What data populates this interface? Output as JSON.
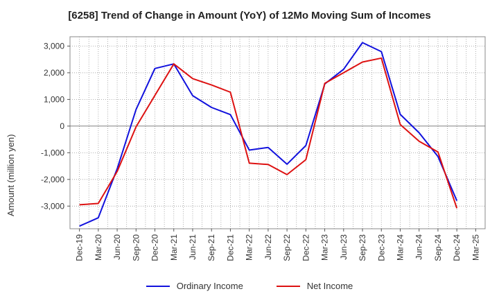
{
  "chart_data": {
    "type": "line",
    "title": "[6258]  Trend of Change in Amount (YoY) of 12Mo Moving Sum of Incomes",
    "ylabel": "Amount (million yen)",
    "xlabel": "",
    "ylim": [
      -3850,
      3350
    ],
    "yticks": [
      3000,
      2000,
      1000,
      0,
      -1000,
      -2000,
      -3000
    ],
    "ytick_labels": [
      "3,000",
      "2,000",
      "1,000",
      "0",
      "-1,000",
      "-2,000",
      "-3,000"
    ],
    "x": [
      "Dec-19",
      "Mar-20",
      "Jun-20",
      "Sep-20",
      "Dec-20",
      "Mar-21",
      "Jun-21",
      "Sep-21",
      "Dec-21",
      "Mar-22",
      "Jun-22",
      "Sep-22",
      "Dec-22",
      "Mar-23",
      "Jun-23",
      "Sep-23",
      "Dec-23",
      "Mar-24",
      "Jun-24",
      "Sep-24",
      "Dec-24",
      "Mar-25"
    ],
    "grid": true,
    "legend_position": "bottom",
    "series": [
      {
        "name": "Ordinary Income",
        "color": "#1111dd",
        "values": [
          -3750,
          -3440,
          -1600,
          620,
          2160,
          2330,
          1140,
          700,
          430,
          -900,
          -800,
          -1430,
          -730,
          1580,
          2130,
          3130,
          2790,
          440,
          -250,
          -1140,
          -2800,
          null
        ]
      },
      {
        "name": "Net Income",
        "color": "#dd1111",
        "values": [
          -2950,
          -2900,
          -1700,
          -30,
          1150,
          2330,
          1780,
          1540,
          1270,
          -1390,
          -1440,
          -1820,
          -1260,
          1600,
          2000,
          2400,
          2550,
          60,
          -570,
          -970,
          -3080,
          null
        ]
      }
    ]
  }
}
